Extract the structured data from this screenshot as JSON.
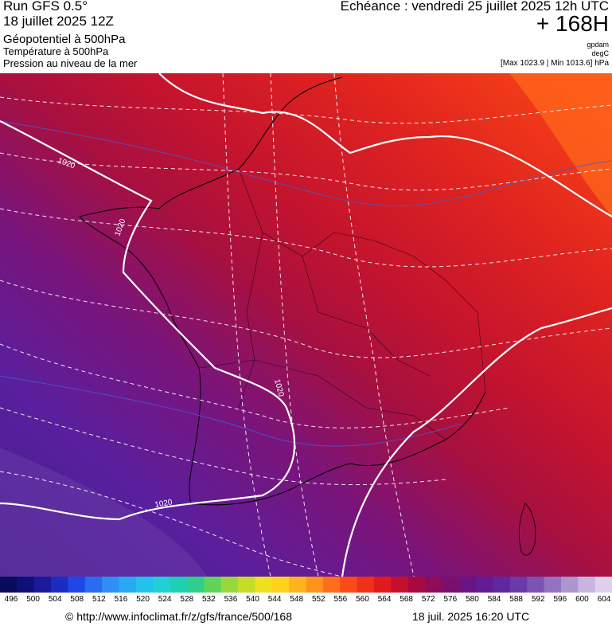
{
  "header": {
    "run_title": "Run GFS 0.5°",
    "run_date": "18 juillet 2025 12Z",
    "variable_1": "Géopotentiel à 500hPa",
    "variable_2": "Température à 500hPa",
    "variable_3": "Pression au niveau de la mer",
    "forecast_label": "Echéance : vendredi 25 juillet 2025 12h UTC",
    "lead_time": "+ 168H",
    "unit_geopotential": "gpdam",
    "unit_temperature": "degC",
    "pressure_range": "[Max 1023.9 | Min 1013.6] hPa"
  },
  "map": {
    "isobar_labels": [
      "1020",
      "1020",
      "1020",
      "1020"
    ],
    "colors": {
      "low": "#5a1f9e",
      "mid": "#b4123f",
      "high": "#f23219",
      "isobar": "#ffffff",
      "isotherm": "#ffffff",
      "geopotential": "#4a5ad0",
      "coast": "#000000"
    }
  },
  "legend": {
    "ticks": [
      "496",
      "500",
      "504",
      "508",
      "512",
      "516",
      "520",
      "524",
      "528",
      "532",
      "536",
      "540",
      "544",
      "548",
      "552",
      "556",
      "560",
      "564",
      "568",
      "572",
      "576",
      "580",
      "584",
      "588",
      "592",
      "596",
      "600",
      "604"
    ],
    "colors": [
      "#0b0b5e",
      "#10107a",
      "#1a1a9a",
      "#1c2cc2",
      "#1f47e6",
      "#2a6cf0",
      "#2f8ff5",
      "#29a9f2",
      "#22c2ec",
      "#1fd1d6",
      "#1fcfb3",
      "#2fcf8b",
      "#5ed45c",
      "#97d93d",
      "#c6dd28",
      "#efe021",
      "#ffd21e",
      "#ffb41d",
      "#ff931c",
      "#ff6e1b",
      "#fc4a19",
      "#f03019",
      "#e01b1f",
      "#c4102d",
      "#a80a40",
      "#8e0c58",
      "#7a0f6e",
      "#6b1584",
      "#611c96",
      "#5f27a0",
      "#6a3aa8",
      "#7b53b2",
      "#9373bf",
      "#ad95cf",
      "#c8b5df",
      "#ddd0ea"
    ],
    "unit": "gpdam"
  },
  "footer": {
    "credit": "© http://www.infoclimat.fr/z/gfs/france/500/168",
    "generated": "18 juil. 2025 16:20 UTC"
  }
}
